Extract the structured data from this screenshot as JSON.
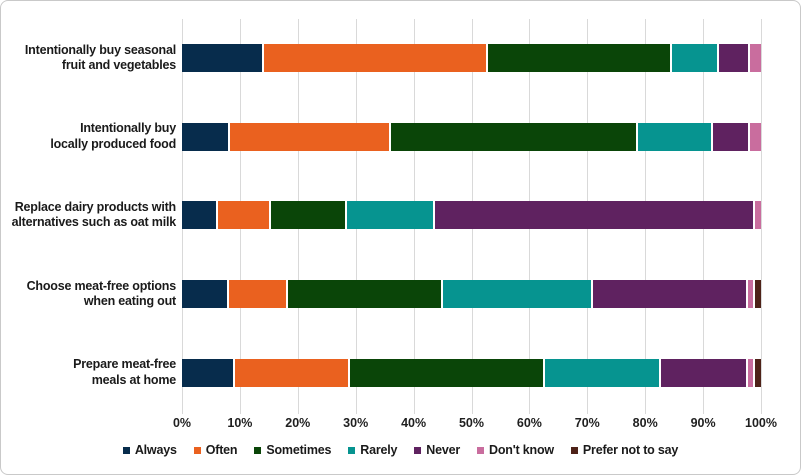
{
  "chart_data": {
    "type": "bar",
    "variant": "stacked-horizontal",
    "title": "",
    "categories": [
      {
        "label": "Intentionally buy seasonal fruit and vegetables",
        "lines": [
          "Intentionally buy seasonal",
          "fruit and vegetables"
        ]
      },
      {
        "label": "Intentionally buy locally produced food",
        "lines": [
          "Intentionally buy",
          "locally produced food"
        ]
      },
      {
        "label": "Replace dairy products with alternatives such as oat milk",
        "lines": [
          "Replace dairy products with",
          "alternatives such as oat milk"
        ]
      },
      {
        "label": "Choose meat-free options when eating out",
        "lines": [
          "Choose meat-free options",
          "when eating out"
        ]
      },
      {
        "label": "Prepare meat-free meals at home",
        "lines": [
          "Prepare meat-free",
          "meals at home"
        ]
      }
    ],
    "series": [
      {
        "name": "Always",
        "color": "#072c4c",
        "values": [
          14,
          8,
          6,
          8,
          9
        ]
      },
      {
        "name": "Often",
        "color": "#ea611f",
        "values": [
          39,
          28,
          9,
          10,
          20
        ]
      },
      {
        "name": "Sometimes",
        "color": "#0a4508",
        "values": [
          32,
          43,
          13,
          27,
          34
        ]
      },
      {
        "name": "Rarely",
        "color": "#069490",
        "values": [
          8,
          13,
          15,
          26,
          20
        ]
      },
      {
        "name": "Never",
        "color": "#5f2260",
        "values": [
          5,
          6,
          56,
          27,
          15
        ]
      },
      {
        "name": "Don't know",
        "color": "#c96d9e",
        "values": [
          2,
          2,
          1,
          1,
          1
        ]
      },
      {
        "name": "Prefer not to say",
        "color": "#4e2218",
        "values": [
          0,
          0,
          0,
          1,
          1
        ]
      }
    ],
    "x_ticks": [
      "0%",
      "10%",
      "20%",
      "30%",
      "40%",
      "50%",
      "60%",
      "70%",
      "80%",
      "90%",
      "100%"
    ],
    "xlim": [
      0,
      100
    ],
    "grid": "vertical",
    "gridline_color": "#d9d9d9",
    "legend_position": "bottom",
    "units": "percent-of-respondents"
  }
}
